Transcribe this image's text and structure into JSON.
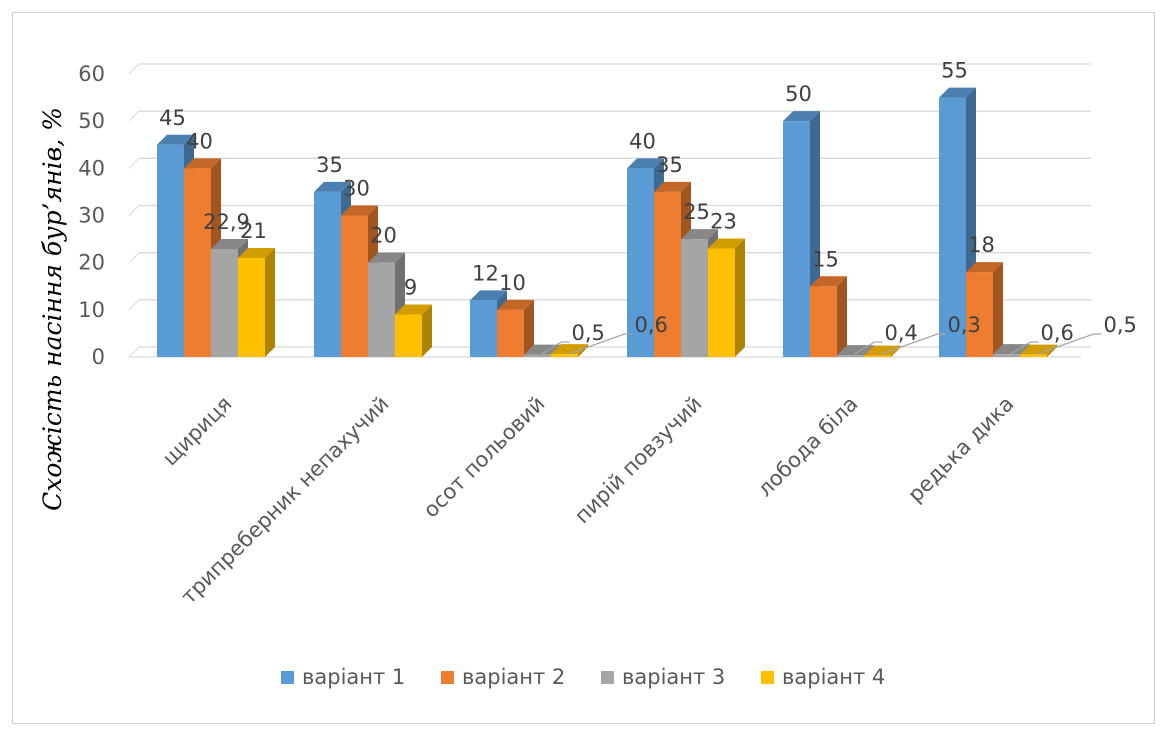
{
  "chart_data": {
    "type": "bar",
    "title": "",
    "xlabel": "",
    "ylabel": "Схожість насіння бур’янів, %",
    "ylim": [
      0,
      60
    ],
    "yticks": [
      0,
      10,
      20,
      30,
      40,
      50,
      60
    ],
    "grid": true,
    "legend_position": "bottom",
    "categories": [
      "щириця",
      "трипреберник непахучий",
      "осот польовий",
      "пирій повзучий",
      "лобода біла",
      "редька дика"
    ],
    "series": [
      {
        "name": "варіант 1",
        "color": "#5B9BD5",
        "values": [
          45,
          35,
          12,
          40,
          50,
          55
        ],
        "labels": [
          "45",
          "35",
          "12",
          "40",
          "50",
          "55"
        ]
      },
      {
        "name": "варіант 2",
        "color": "#ED7D31",
        "values": [
          40,
          30,
          10,
          35,
          15,
          18
        ],
        "labels": [
          "40",
          "30",
          "10",
          "35",
          "15",
          "18"
        ]
      },
      {
        "name": "варіант 3",
        "color": "#A5A5A5",
        "values": [
          22.9,
          20,
          0.5,
          25,
          0.4,
          0.6
        ],
        "labels": [
          "22,9",
          "20",
          "0,5",
          "25",
          "0,4",
          "0,6"
        ]
      },
      {
        "name": "варіант 4",
        "color": "#FFC000",
        "values": [
          21,
          9,
          0.6,
          23,
          0.3,
          0.5
        ],
        "labels": [
          "21",
          "9",
          "0,6",
          "23",
          "0,3",
          "0,5"
        ]
      }
    ]
  }
}
